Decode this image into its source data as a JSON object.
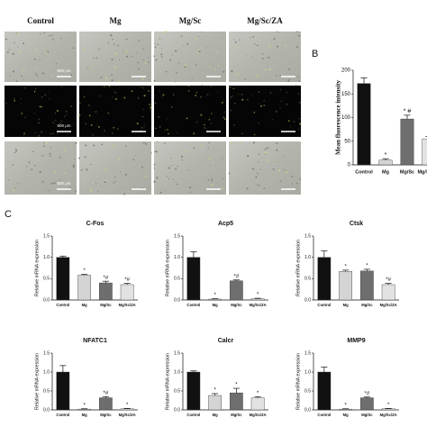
{
  "micrographs": {
    "columns": [
      "Control",
      "Mg",
      "Mg/Sc",
      "Mg/Sc/ZA"
    ],
    "scale_label": "500 μm"
  },
  "panel_labels": {
    "b": "B",
    "c": "C"
  },
  "chart_data": [
    {
      "type": "bar",
      "ylabel": "Mean fluorescence intensity",
      "categories": [
        "Control",
        "Mg",
        "Mg/Sc",
        "Mg/Sc/ZA"
      ],
      "values": [
        172,
        10,
        97,
        55
      ],
      "errors": [
        12,
        3,
        8,
        5
      ],
      "annotations": [
        null,
        "*",
        "* #",
        "*"
      ],
      "colors": [
        "#111111",
        "#d4d4d4",
        "#6e6e6e",
        "#e2e2e2"
      ],
      "ylim": [
        0,
        200
      ],
      "yticks": [
        0,
        50,
        100,
        150,
        200
      ]
    },
    {
      "type": "bar",
      "title": "C-Fos",
      "ylabel": "Relative mRNA expression",
      "categories": [
        "Control",
        "Mg",
        "Mg/Sc",
        "Mg/Sc/ZA"
      ],
      "values": [
        1.0,
        0.58,
        0.4,
        0.36
      ],
      "errors": [
        0.03,
        0.02,
        0.04,
        0.03
      ],
      "annotations": [
        null,
        "*",
        "*#",
        "*#"
      ],
      "colors": [
        "#111111",
        "#d4d4d4",
        "#6e6e6e",
        "#e2e2e2"
      ],
      "ylim": [
        0,
        1.5
      ],
      "yticks": [
        {
          "value": 0,
          "label": "0.0"
        },
        0.5,
        {
          "value": 1,
          "label": "1.0"
        },
        1.5
      ]
    },
    {
      "type": "bar",
      "title": "Acp5",
      "ylabel": "Relative mRNA expression",
      "categories": [
        "Control",
        "Mg",
        "Mg/Sc",
        "Mg/Sc/ZA"
      ],
      "values": [
        1.0,
        0.02,
        0.45,
        0.03
      ],
      "errors": [
        0.13,
        0.01,
        0.02,
        0.01
      ],
      "annotations": [
        null,
        "*",
        "*#",
        "*"
      ],
      "colors": [
        "#111111",
        "#d4d4d4",
        "#6e6e6e",
        "#e2e2e2"
      ],
      "ylim": [
        0,
        1.5
      ],
      "yticks": [
        {
          "value": 0,
          "label": "0.0"
        },
        0.5,
        {
          "value": 1,
          "label": "1.0"
        },
        1.5
      ]
    },
    {
      "type": "bar",
      "title": "Ctsk",
      "ylabel": "Relative mRNA expression",
      "categories": [
        "Control",
        "Mg",
        "Mg/Sc",
        "Mg/Sc/ZA"
      ],
      "values": [
        1.0,
        0.67,
        0.68,
        0.36
      ],
      "errors": [
        0.15,
        0.03,
        0.04,
        0.03
      ],
      "annotations": [
        null,
        "*",
        "*",
        "*#"
      ],
      "colors": [
        "#111111",
        "#d4d4d4",
        "#6e6e6e",
        "#e2e2e2"
      ],
      "ylim": [
        0,
        1.5
      ],
      "yticks": [
        {
          "value": 0,
          "label": "0.0"
        },
        0.5,
        {
          "value": 1,
          "label": "1.0"
        },
        1.5
      ]
    },
    {
      "type": "bar",
      "title": "NFATC1",
      "ylabel": "Relative mRNA expression",
      "categories": [
        "Control",
        "Mg",
        "Mg/Sc",
        "Mg/Sc/ZA"
      ],
      "values": [
        1.0,
        0.02,
        0.32,
        0.03
      ],
      "errors": [
        0.17,
        0.01,
        0.03,
        0.01
      ],
      "annotations": [
        null,
        "*",
        "*#",
        "*"
      ],
      "colors": [
        "#111111",
        "#d4d4d4",
        "#6e6e6e",
        "#e2e2e2"
      ],
      "ylim": [
        0,
        1.5
      ],
      "yticks": [
        {
          "value": 0,
          "label": "0.0"
        },
        0.5,
        {
          "value": 1,
          "label": "1.0"
        },
        1.5
      ]
    },
    {
      "type": "bar",
      "title": "Calcr",
      "ylabel": "Relative mRNA expression",
      "categories": [
        "Control",
        "Mg",
        "Mg/Sc",
        "Mg/Sc/ZA"
      ],
      "values": [
        1.0,
        0.38,
        0.45,
        0.32
      ],
      "errors": [
        0.03,
        0.05,
        0.12,
        0.03
      ],
      "annotations": [
        null,
        "*",
        "*",
        "*"
      ],
      "colors": [
        "#111111",
        "#d4d4d4",
        "#6e6e6e",
        "#e2e2e2"
      ],
      "ylim": [
        0,
        1.5
      ],
      "yticks": [
        {
          "value": 0,
          "label": "0.0"
        },
        0.5,
        {
          "value": 1,
          "label": "1.0"
        },
        1.5
      ]
    },
    {
      "type": "bar",
      "title": "MMP9",
      "ylabel": "Relative mRNA expression",
      "categories": [
        "Control",
        "Mg",
        "Mg/Sc",
        "Mg/Sc/ZA"
      ],
      "values": [
        1.0,
        0.02,
        0.32,
        0.03
      ],
      "errors": [
        0.13,
        0.01,
        0.02,
        0.01
      ],
      "annotations": [
        null,
        "*",
        "*#",
        "*"
      ],
      "colors": [
        "#111111",
        "#d4d4d4",
        "#6e6e6e",
        "#e2e2e2"
      ],
      "ylim": [
        0,
        1.5
      ],
      "yticks": [
        {
          "value": 0,
          "label": "0.0"
        },
        0.5,
        {
          "value": 1,
          "label": "1.0"
        },
        1.5
      ]
    }
  ]
}
